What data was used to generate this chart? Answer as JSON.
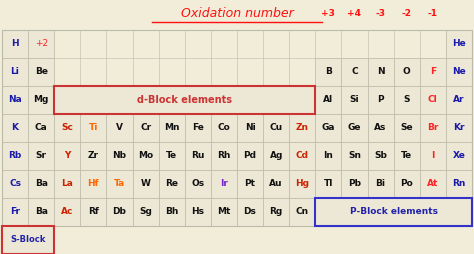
{
  "title": "Oxidation number",
  "bg_color": "#f2edd8",
  "cell_bg": "#ede8d5",
  "grid_color": "#bbbbaa",
  "rows": [
    {
      "row": 0,
      "elements": [
        {
          "sym": "H",
          "col": 0,
          "color": "#1a1aaa",
          "bold": true
        },
        {
          "sym": "+2",
          "col": 1,
          "color": "#ff2222",
          "bold": false
        },
        {
          "sym": "He",
          "col": 17,
          "color": "#1a1aaa",
          "bold": true
        }
      ]
    },
    {
      "row": 1,
      "elements": [
        {
          "sym": "Li",
          "col": 0,
          "color": "#1a1aaa",
          "bold": true
        },
        {
          "sym": "Be",
          "col": 1,
          "color": "#111111",
          "bold": true
        },
        {
          "sym": "B",
          "col": 12,
          "color": "#111111",
          "bold": true
        },
        {
          "sym": "C",
          "col": 13,
          "color": "#111111",
          "bold": true
        },
        {
          "sym": "N",
          "col": 14,
          "color": "#111111",
          "bold": true
        },
        {
          "sym": "O",
          "col": 15,
          "color": "#111111",
          "bold": true
        },
        {
          "sym": "F",
          "col": 16,
          "color": "#ff2222",
          "bold": true
        },
        {
          "sym": "Ne",
          "col": 17,
          "color": "#1a1aaa",
          "bold": true
        }
      ]
    },
    {
      "row": 2,
      "elements": [
        {
          "sym": "Na",
          "col": 0,
          "color": "#1a1aaa",
          "bold": true
        },
        {
          "sym": "Mg",
          "col": 1,
          "color": "#111111",
          "bold": true
        },
        {
          "sym": "Al",
          "col": 12,
          "color": "#111111",
          "bold": true
        },
        {
          "sym": "Si",
          "col": 13,
          "color": "#111111",
          "bold": true
        },
        {
          "sym": "P",
          "col": 14,
          "color": "#111111",
          "bold": true
        },
        {
          "sym": "S",
          "col": 15,
          "color": "#111111",
          "bold": true
        },
        {
          "sym": "Cl",
          "col": 16,
          "color": "#ff2222",
          "bold": true
        },
        {
          "sym": "Ar",
          "col": 17,
          "color": "#1a1aaa",
          "bold": true
        }
      ]
    },
    {
      "row": 3,
      "elements": [
        {
          "sym": "K",
          "col": 0,
          "color": "#1a1aaa",
          "bold": true
        },
        {
          "sym": "Ca",
          "col": 1,
          "color": "#111111",
          "bold": true
        },
        {
          "sym": "Sc",
          "col": 2,
          "color": "#cc2200",
          "bold": true
        },
        {
          "sym": "Ti",
          "col": 3,
          "color": "#ff6600",
          "bold": true
        },
        {
          "sym": "V",
          "col": 4,
          "color": "#111111",
          "bold": true
        },
        {
          "sym": "Cr",
          "col": 5,
          "color": "#111111",
          "bold": true
        },
        {
          "sym": "Mn",
          "col": 6,
          "color": "#111111",
          "bold": true
        },
        {
          "sym": "Fe",
          "col": 7,
          "color": "#111111",
          "bold": true
        },
        {
          "sym": "Co",
          "col": 8,
          "color": "#111111",
          "bold": true
        },
        {
          "sym": "Ni",
          "col": 9,
          "color": "#111111",
          "bold": true
        },
        {
          "sym": "Cu",
          "col": 10,
          "color": "#111111",
          "bold": true
        },
        {
          "sym": "Zn",
          "col": 11,
          "color": "#cc2200",
          "bold": true
        },
        {
          "sym": "Ga",
          "col": 12,
          "color": "#111111",
          "bold": true
        },
        {
          "sym": "Ge",
          "col": 13,
          "color": "#111111",
          "bold": true
        },
        {
          "sym": "As",
          "col": 14,
          "color": "#111111",
          "bold": true
        },
        {
          "sym": "Se",
          "col": 15,
          "color": "#111111",
          "bold": true
        },
        {
          "sym": "Br",
          "col": 16,
          "color": "#ff2222",
          "bold": true
        },
        {
          "sym": "Kr",
          "col": 17,
          "color": "#1a1aaa",
          "bold": true
        }
      ]
    },
    {
      "row": 4,
      "elements": [
        {
          "sym": "Rb",
          "col": 0,
          "color": "#1a1aaa",
          "bold": true
        },
        {
          "sym": "Sr",
          "col": 1,
          "color": "#111111",
          "bold": true
        },
        {
          "sym": "Y",
          "col": 2,
          "color": "#cc2200",
          "bold": true
        },
        {
          "sym": "Zr",
          "col": 3,
          "color": "#111111",
          "bold": true
        },
        {
          "sym": "Nb",
          "col": 4,
          "color": "#111111",
          "bold": true
        },
        {
          "sym": "Mo",
          "col": 5,
          "color": "#111111",
          "bold": true
        },
        {
          "sym": "Te",
          "col": 6,
          "color": "#111111",
          "bold": true
        },
        {
          "sym": "Ru",
          "col": 7,
          "color": "#111111",
          "bold": true
        },
        {
          "sym": "Rh",
          "col": 8,
          "color": "#111111",
          "bold": true
        },
        {
          "sym": "Pd",
          "col": 9,
          "color": "#111111",
          "bold": true
        },
        {
          "sym": "Ag",
          "col": 10,
          "color": "#111111",
          "bold": true
        },
        {
          "sym": "Cd",
          "col": 11,
          "color": "#cc2200",
          "bold": true
        },
        {
          "sym": "In",
          "col": 12,
          "color": "#111111",
          "bold": true
        },
        {
          "sym": "Sn",
          "col": 13,
          "color": "#111111",
          "bold": true
        },
        {
          "sym": "Sb",
          "col": 14,
          "color": "#111111",
          "bold": true
        },
        {
          "sym": "Te",
          "col": 15,
          "color": "#111111",
          "bold": true
        },
        {
          "sym": "I",
          "col": 16,
          "color": "#ff2222",
          "bold": true
        },
        {
          "sym": "Xe",
          "col": 17,
          "color": "#1a1aaa",
          "bold": true
        }
      ]
    },
    {
      "row": 5,
      "elements": [
        {
          "sym": "Cs",
          "col": 0,
          "color": "#1a1aaa",
          "bold": true
        },
        {
          "sym": "Ba",
          "col": 1,
          "color": "#111111",
          "bold": true
        },
        {
          "sym": "La",
          "col": 2,
          "color": "#cc2200",
          "bold": true
        },
        {
          "sym": "Hf",
          "col": 3,
          "color": "#ff6600",
          "bold": true
        },
        {
          "sym": "Ta",
          "col": 4,
          "color": "#ff6600",
          "bold": true
        },
        {
          "sym": "W",
          "col": 5,
          "color": "#111111",
          "bold": true
        },
        {
          "sym": "Re",
          "col": 6,
          "color": "#111111",
          "bold": true
        },
        {
          "sym": "Os",
          "col": 7,
          "color": "#111111",
          "bold": true
        },
        {
          "sym": "Ir",
          "col": 8,
          "color": "#7722cc",
          "bold": true
        },
        {
          "sym": "Pt",
          "col": 9,
          "color": "#111111",
          "bold": true
        },
        {
          "sym": "Au",
          "col": 10,
          "color": "#111111",
          "bold": true
        },
        {
          "sym": "Hg",
          "col": 11,
          "color": "#cc2200",
          "bold": true
        },
        {
          "sym": "Tl",
          "col": 12,
          "color": "#111111",
          "bold": true
        },
        {
          "sym": "Pb",
          "col": 13,
          "color": "#111111",
          "bold": true
        },
        {
          "sym": "Bi",
          "col": 14,
          "color": "#111111",
          "bold": true
        },
        {
          "sym": "Po",
          "col": 15,
          "color": "#111111",
          "bold": true
        },
        {
          "sym": "At",
          "col": 16,
          "color": "#ff2222",
          "bold": true
        },
        {
          "sym": "Rn",
          "col": 17,
          "color": "#1a1aaa",
          "bold": true
        }
      ]
    },
    {
      "row": 6,
      "elements": [
        {
          "sym": "Fr",
          "col": 0,
          "color": "#1a1aaa",
          "bold": true
        },
        {
          "sym": "Ba",
          "col": 1,
          "color": "#111111",
          "bold": true
        },
        {
          "sym": "Ac",
          "col": 2,
          "color": "#cc2200",
          "bold": true
        },
        {
          "sym": "Rf",
          "col": 3,
          "color": "#111111",
          "bold": true
        },
        {
          "sym": "Db",
          "col": 4,
          "color": "#111111",
          "bold": true
        },
        {
          "sym": "Sg",
          "col": 5,
          "color": "#111111",
          "bold": true
        },
        {
          "sym": "Bh",
          "col": 6,
          "color": "#111111",
          "bold": true
        },
        {
          "sym": "Hs",
          "col": 7,
          "color": "#111111",
          "bold": true
        },
        {
          "sym": "Mt",
          "col": 8,
          "color": "#111111",
          "bold": true
        },
        {
          "sym": "Ds",
          "col": 9,
          "color": "#111111",
          "bold": true
        },
        {
          "sym": "Rg",
          "col": 10,
          "color": "#111111",
          "bold": true
        },
        {
          "sym": "Cn",
          "col": 11,
          "color": "#111111",
          "bold": true
        }
      ]
    }
  ],
  "ox_labels": [
    "+3",
    "+4",
    "-3",
    "-2",
    "-1"
  ],
  "ox_cols": [
    12,
    13,
    14,
    15,
    16
  ],
  "dblock_label": "d-Block elements",
  "pblock_label": "P-Block elements",
  "sblock_label": "S-Block",
  "num_cols": 18,
  "num_rows": 7,
  "sblock_row": 7
}
